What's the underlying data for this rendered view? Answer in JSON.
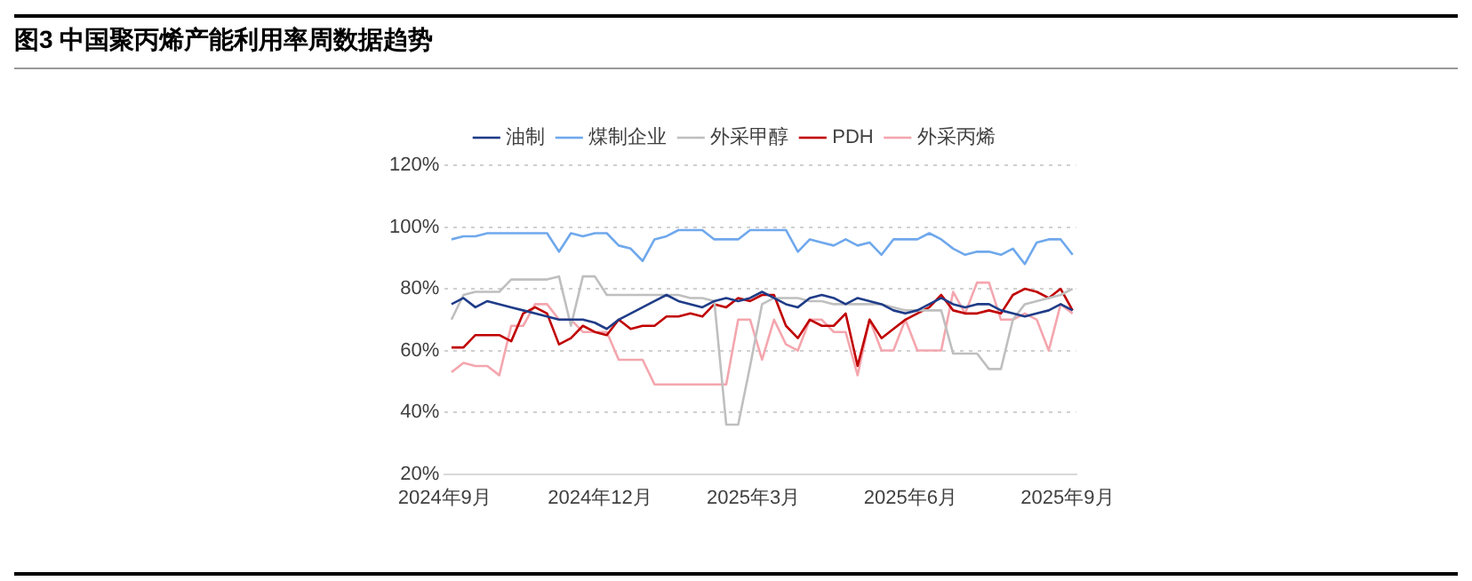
{
  "chart_data": {
    "type": "line",
    "title": "图3 中国聚丙烯产能利用率周数据趋势",
    "x": [
      "2024-09-05",
      "2024-09-12",
      "2024-09-19",
      "2024-09-26",
      "2024-10-03",
      "2024-10-10",
      "2024-10-17",
      "2024-10-24",
      "2024-10-31",
      "2024-11-07",
      "2024-11-14",
      "2024-11-21",
      "2024-11-28",
      "2024-12-05",
      "2024-12-12",
      "2024-12-19",
      "2024-12-26",
      "2025-01-02",
      "2025-01-09",
      "2025-01-16",
      "2025-01-23",
      "2025-01-30",
      "2025-02-06",
      "2025-02-13",
      "2025-02-20",
      "2025-02-27",
      "2025-03-06",
      "2025-03-13",
      "2025-03-20",
      "2025-03-27",
      "2025-04-03",
      "2025-04-10",
      "2025-04-17",
      "2025-04-24",
      "2025-05-01",
      "2025-05-08",
      "2025-05-15",
      "2025-05-22",
      "2025-05-29",
      "2025-06-05",
      "2025-06-12",
      "2025-06-19",
      "2025-06-26",
      "2025-07-03",
      "2025-07-10",
      "2025-07-17",
      "2025-07-24",
      "2025-07-31",
      "2025-08-07",
      "2025-08-14",
      "2025-08-21",
      "2025-08-28",
      "2025-09-04"
    ],
    "series": [
      {
        "name": "油制",
        "color": "#1f3c88",
        "values": [
          75,
          77,
          74,
          76,
          75,
          74,
          73,
          72,
          71,
          70,
          70,
          70,
          69,
          67,
          70,
          72,
          74,
          76,
          78,
          76,
          75,
          74,
          76,
          77,
          76,
          77,
          79,
          77,
          75,
          74,
          77,
          78,
          77,
          75,
          77,
          76,
          75,
          73,
          72,
          73,
          75,
          77,
          75,
          74,
          75,
          75,
          73,
          72,
          71,
          72,
          73,
          75,
          73
        ]
      },
      {
        "name": "煤制企业",
        "color": "#6fa8ec",
        "values": [
          96,
          97,
          97,
          98,
          98,
          98,
          98,
          98,
          98,
          92,
          98,
          97,
          98,
          98,
          94,
          93,
          89,
          96,
          97,
          99,
          99,
          99,
          96,
          96,
          96,
          99,
          99,
          99,
          99,
          92,
          96,
          95,
          94,
          96,
          94,
          95,
          91,
          96,
          96,
          96,
          98,
          96,
          93,
          91,
          92,
          92,
          91,
          93,
          88,
          95,
          96,
          96,
          91
        ]
      },
      {
        "name": "外采甲醇",
        "color": "#bfbfbf",
        "values": [
          70,
          78,
          79,
          79,
          79,
          83,
          83,
          83,
          83,
          84,
          68,
          84,
          84,
          78,
          78,
          78,
          78,
          78,
          78,
          78,
          77,
          77,
          76,
          36,
          36,
          55,
          75,
          77,
          77,
          77,
          76,
          76,
          75,
          75,
          75,
          75,
          75,
          74,
          73,
          73,
          73,
          73,
          59,
          59,
          59,
          54,
          54,
          70,
          75,
          76,
          77,
          78,
          80
        ]
      },
      {
        "name": "PDH",
        "color": "#c00000",
        "values": [
          61,
          61,
          65,
          65,
          65,
          63,
          72,
          74,
          72,
          62,
          64,
          68,
          66,
          65,
          70,
          67,
          68,
          68,
          71,
          71,
          72,
          71,
          75,
          74,
          77,
          76,
          78,
          78,
          68,
          64,
          70,
          68,
          68,
          72,
          55,
          70,
          64,
          67,
          70,
          72,
          74,
          78,
          73,
          72,
          72,
          73,
          72,
          78,
          80,
          79,
          77,
          80,
          73
        ]
      },
      {
        "name": "外采丙烯",
        "color": "#f4a6ae",
        "values": [
          53,
          56,
          55,
          55,
          52,
          68,
          68,
          75,
          75,
          70,
          70,
          66,
          66,
          66,
          57,
          57,
          57,
          49,
          49,
          49,
          49,
          49,
          49,
          49,
          70,
          70,
          57,
          70,
          62,
          60,
          70,
          70,
          66,
          66,
          52,
          70,
          60,
          60,
          70,
          60,
          60,
          60,
          79,
          72,
          82,
          82,
          70,
          70,
          72,
          70,
          60,
          75,
          72
        ]
      }
    ],
    "xlim": [
      "2024-09-01",
      "2025-09-06"
    ],
    "xticks": [
      {
        "value": "2024-09-01",
        "label": "2024年9月"
      },
      {
        "value": "2024-12-01",
        "label": "2024年12月"
      },
      {
        "value": "2025-03-01",
        "label": "2025年3月"
      },
      {
        "value": "2025-06-01",
        "label": "2025年6月"
      },
      {
        "value": "2025-09-01",
        "label": "2025年9月"
      }
    ],
    "ylim": [
      20,
      120
    ],
    "yticks": [
      {
        "value": 20,
        "label": "20%"
      },
      {
        "value": 40,
        "label": "40%"
      },
      {
        "value": 60,
        "label": "60%"
      },
      {
        "value": 80,
        "label": "80%"
      },
      {
        "value": 100,
        "label": "100%"
      },
      {
        "value": 120,
        "label": "120%"
      }
    ],
    "grid": "y",
    "legend": "top",
    "marker": "none",
    "line_style": "solid"
  }
}
